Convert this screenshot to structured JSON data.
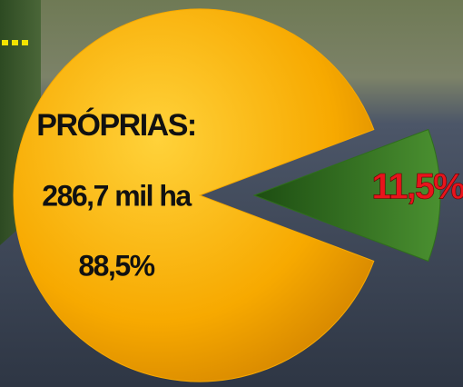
{
  "chart_data": {
    "type": "pie",
    "categories": [
      "PRÓPRIAS:",
      null
    ],
    "values": [
      88.5,
      11.5
    ],
    "value_labels": [
      "88,5%",
      "11,5%"
    ],
    "colors": [
      "#f7a900",
      "#2f6e1c"
    ],
    "annotations": [
      "286,7 mil ha"
    ]
  }
}
